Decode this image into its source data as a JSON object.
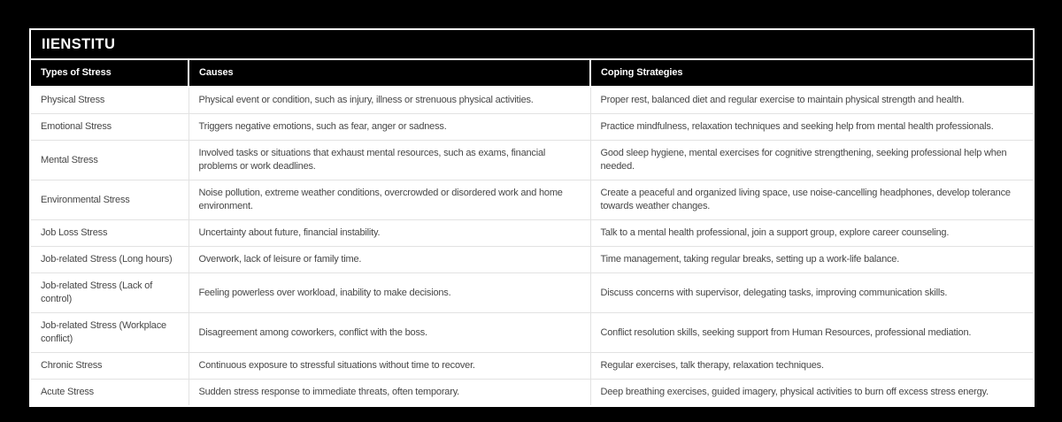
{
  "brand": {
    "title": "IIENSTITU"
  },
  "table": {
    "columns": [
      "Types of Stress",
      "Causes",
      "Coping Strategies"
    ],
    "rows": [
      {
        "type": "Physical Stress",
        "cause": "Physical event or condition, such as injury, illness or strenuous physical activities.",
        "coping": "Proper rest, balanced diet and regular exercise to maintain physical strength and health."
      },
      {
        "type": "Emotional Stress",
        "cause": "Triggers negative emotions, such as fear, anger or sadness.",
        "coping": "Practice mindfulness, relaxation techniques and seeking help from mental health professionals."
      },
      {
        "type": "Mental Stress",
        "cause": "Involved tasks or situations that exhaust mental resources, such as exams, financial problems or work deadlines.",
        "coping": "Good sleep hygiene, mental exercises for cognitive strengthening, seeking professional help when needed."
      },
      {
        "type": "Environmental Stress",
        "cause": "Noise pollution, extreme weather conditions, overcrowded or disordered work and home environment.",
        "coping": "Create a peaceful and organized living space, use noise-cancelling headphones, develop tolerance towards weather changes."
      },
      {
        "type": "Job Loss Stress",
        "cause": "Uncertainty about future, financial instability.",
        "coping": "Talk to a mental health professional, join a support group, explore career counseling."
      },
      {
        "type": "Job-related Stress (Long hours)",
        "cause": "Overwork, lack of leisure or family time.",
        "coping": "Time management, taking regular breaks, setting up a work-life balance."
      },
      {
        "type": "Job-related Stress (Lack of control)",
        "cause": "Feeling powerless over workload, inability to make decisions.",
        "coping": "Discuss concerns with supervisor, delegating tasks, improving communication skills."
      },
      {
        "type": "Job-related Stress (Workplace conflict)",
        "cause": "Disagreement among coworkers, conflict with the boss.",
        "coping": "Conflict resolution skills, seeking support from Human Resources, professional mediation."
      },
      {
        "type": "Chronic Stress",
        "cause": "Continuous exposure to stressful situations without time to recover.",
        "coping": "Regular exercises, talk therapy, relaxation techniques."
      },
      {
        "type": "Acute Stress",
        "cause": "Sudden stress response to immediate threats, often temporary.",
        "coping": "Deep breathing exercises, guided imagery, physical activities to burn off excess stress energy."
      }
    ]
  },
  "colors": {
    "page_background": "#000000",
    "band_background": "#000000",
    "band_text": "#ffffff",
    "body_text": "#474747",
    "row_divider": "#e2e2e2",
    "table_border": "#ffffff"
  }
}
